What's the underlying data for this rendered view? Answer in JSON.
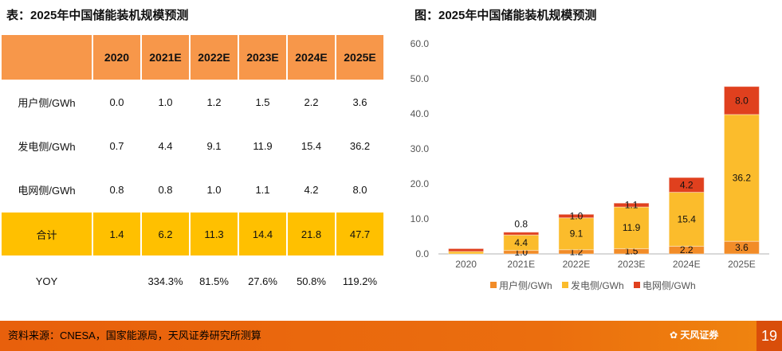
{
  "table_title": "表：2025年中国储能装机规模预测",
  "chart_title": "图：2025年中国储能装机规模预测",
  "table": {
    "header": [
      "",
      "2020",
      "2021E",
      "2022E",
      "2023E",
      "2024E",
      "2025E"
    ],
    "rows": [
      [
        "用户侧/GWh",
        "0.0",
        "1.0",
        "1.2",
        "1.5",
        "2.2",
        "3.6"
      ],
      [
        "发电侧/GWh",
        "0.7",
        "4.4",
        "9.1",
        "11.9",
        "15.4",
        "36.2"
      ],
      [
        "电网侧/GWh",
        "0.8",
        "0.8",
        "1.0",
        "1.1",
        "4.2",
        "8.0"
      ],
      [
        "合计",
        "1.4",
        "6.2",
        "11.3",
        "14.4",
        "21.8",
        "47.7"
      ],
      [
        "YOY",
        "",
        "334.3%",
        "81.5%",
        "27.6%",
        "50.8%",
        "119.2%"
      ]
    ]
  },
  "chart_data": {
    "type": "bar",
    "stacked": true,
    "categories": [
      "2020",
      "2021E",
      "2022E",
      "2023E",
      "2024E",
      "2025E"
    ],
    "series": [
      {
        "name": "用户侧/GWh",
        "color": "#F28C28",
        "values": [
          0.0,
          1.0,
          1.2,
          1.5,
          2.2,
          3.6
        ],
        "labels": [
          "",
          "1.0",
          "1.2",
          "1.5",
          "2.2",
          "3.6"
        ]
      },
      {
        "name": "发电侧/GWh",
        "color": "#FBBC2C",
        "values": [
          0.7,
          4.4,
          9.1,
          11.9,
          15.4,
          36.2
        ],
        "labels": [
          "",
          "4.4",
          "9.1",
          "11.9",
          "15.4",
          "36.2"
        ]
      },
      {
        "name": "电网侧/GWh",
        "color": "#E0401E",
        "values": [
          0.8,
          0.8,
          1.0,
          1.1,
          4.2,
          8.0
        ],
        "labels": [
          "",
          "0.8",
          "1.0",
          "1.1",
          "4.2",
          "8.0"
        ]
      }
    ],
    "yticks": [
      "0.0",
      "10.0",
      "20.0",
      "30.0",
      "40.0",
      "50.0",
      "60.0"
    ],
    "ylim": [
      0,
      60
    ],
    "legend": "bottom"
  },
  "footer": {
    "source": "资料来源：CNESA，国家能源局，天风证券研究所测算",
    "logo": "天风证券",
    "page": "19"
  }
}
